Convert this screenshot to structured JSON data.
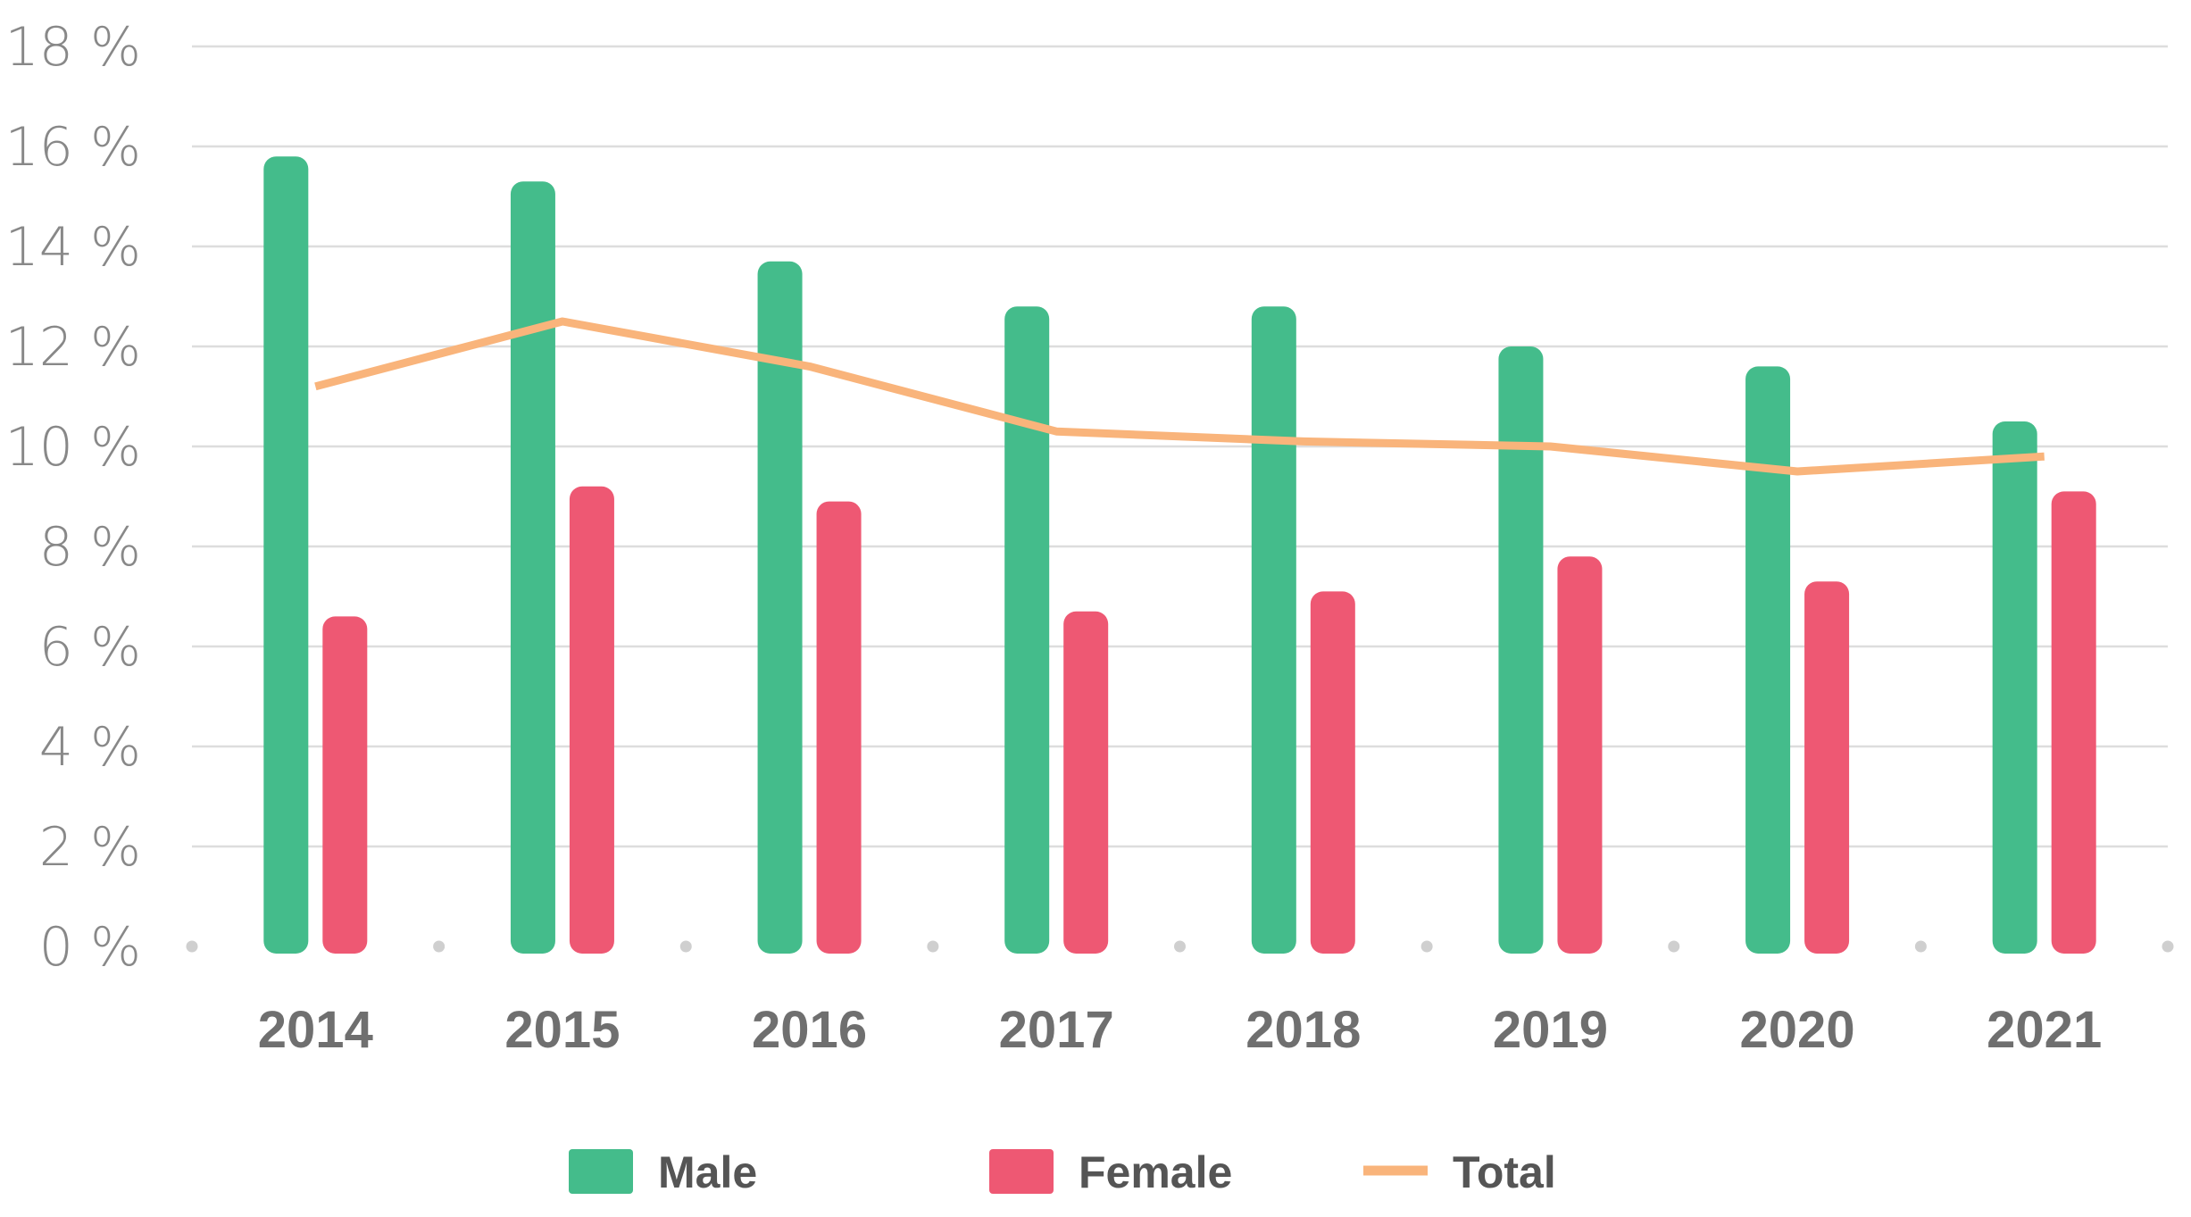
{
  "chart_data": {
    "type": "bar",
    "title": "",
    "xlabel": "",
    "ylabel": "",
    "categories": [
      "2014",
      "2015",
      "2016",
      "2017",
      "2018",
      "2019",
      "2020",
      "2021"
    ],
    "ylim": [
      0,
      18
    ],
    "yticks": [
      0,
      2,
      4,
      6,
      8,
      10,
      12,
      14,
      16,
      18
    ],
    "ytick_labels": [
      "0 %",
      "2 %",
      "4 %",
      "6 %",
      "8 %",
      "10 %",
      "12 %",
      "14 %",
      "16 %",
      "18 %"
    ],
    "grid": true,
    "legend_position": "bottom",
    "series": [
      {
        "name": "Male",
        "type": "bar",
        "color": "#44bc8b",
        "values": [
          15.8,
          15.3,
          13.7,
          12.8,
          12.8,
          12.0,
          11.6,
          10.5
        ]
      },
      {
        "name": "Female",
        "type": "bar",
        "color": "#ee5873",
        "values": [
          6.6,
          9.2,
          8.9,
          6.7,
          7.1,
          7.8,
          7.3,
          9.1
        ]
      },
      {
        "name": "Total",
        "type": "line",
        "color": "#f9b47b",
        "values": [
          11.2,
          12.5,
          11.6,
          10.3,
          10.1,
          10.0,
          9.5,
          9.8
        ]
      }
    ]
  }
}
